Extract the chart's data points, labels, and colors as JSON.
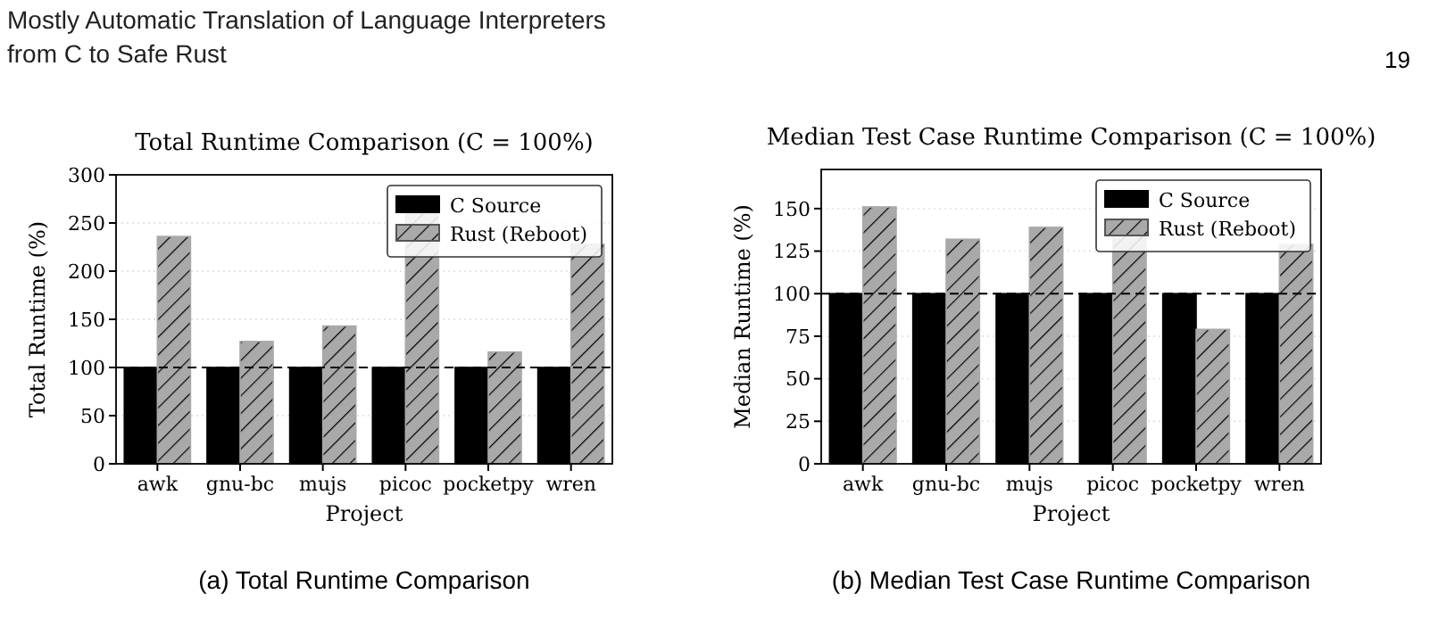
{
  "chart_data": [
    {
      "type": "bar",
      "title": "Total Runtime Comparison (C = 100%)",
      "xlabel": "Project",
      "ylabel": "Total Runtime (%)",
      "categories": [
        "awk",
        "gnu-bc",
        "mujs",
        "picoc",
        "pocketpy",
        "wren"
      ],
      "series": [
        {
          "name": "C Source",
          "color": "#000000",
          "values": [
            100,
            100,
            100,
            100,
            100,
            100
          ]
        },
        {
          "name": "Rust (Reboot)",
          "color": "#a9a9a9",
          "values": [
            236,
            127,
            143,
            262,
            116,
            228
          ]
        }
      ],
      "ylim": [
        0,
        300
      ],
      "yticks": [
        0,
        50,
        100,
        150,
        200,
        250,
        300
      ],
      "grid": "y",
      "legend": "top right",
      "ref_lines": [
        {
          "axis": "y",
          "value": 100,
          "line_style": "dashed",
          "color": "#000000"
        }
      ],
      "annotations": [
        "Mostly Automatic Translation of Language Interpreters from C to Safe Rust",
        "(a) Total Runtime Comparison"
      ]
    },
    {
      "type": "bar",
      "title": "Median Test Case Runtime Comparison (C = 100%)",
      "xlabel": "Project",
      "ylabel": "Median Runtime (%)",
      "categories": [
        "awk",
        "gnu-bc",
        "mujs",
        "picoc",
        "pocketpy",
        "wren"
      ],
      "series": [
        {
          "name": "C Source",
          "color": "#000000",
          "values": [
            100,
            100,
            100,
            100,
            100,
            100
          ]
        },
        {
          "name": "Rust (Reboot)",
          "color": "#a9a9a9",
          "values": [
            151,
            132,
            139,
            135,
            79,
            129
          ]
        }
      ],
      "ylim": [
        0,
        173
      ],
      "yticks": [
        0,
        25,
        50,
        75,
        100,
        125,
        150
      ],
      "grid": "y",
      "legend": "top right",
      "ref_lines": [
        {
          "axis": "y",
          "value": 100,
          "line_style": "dashed",
          "color": "#000000"
        }
      ],
      "annotations": [
        "19",
        "(b) Median Test Case Runtime Comparison"
      ]
    }
  ]
}
